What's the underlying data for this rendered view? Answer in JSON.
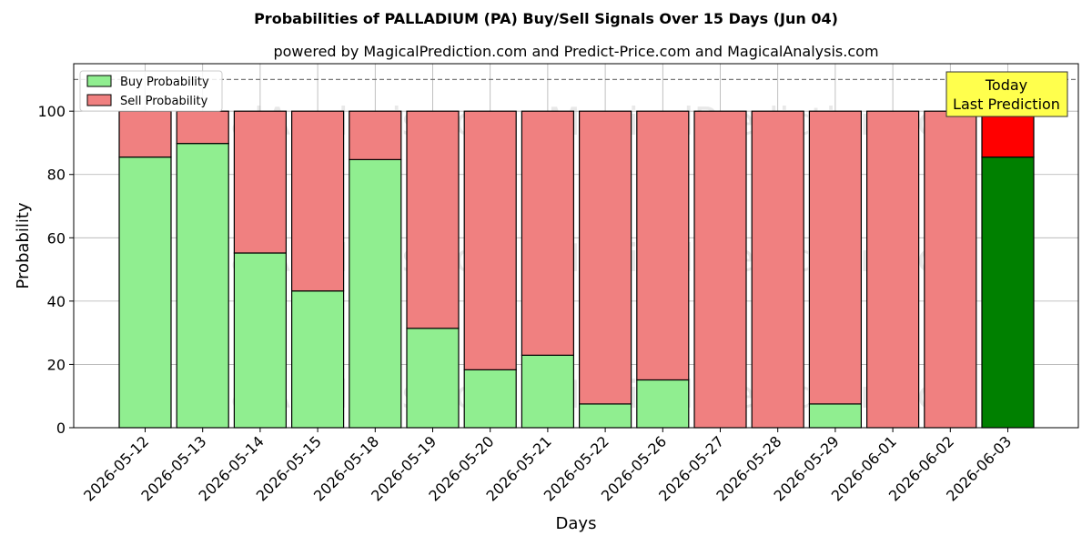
{
  "chart_data": {
    "type": "bar",
    "title": "Probabilities of PALLADIUM (PA) Buy/Sell Signals Over 15 Days (Jun 04)",
    "subtitle": "powered by MagicalPrediction.com and Predict-Price.com and MagicalAnalysis.com",
    "xlabel": "Days",
    "ylabel": "Probability",
    "ylim": [
      0,
      115
    ],
    "yticks": [
      0,
      20,
      40,
      60,
      80,
      100
    ],
    "reference_line": 110,
    "grid": true,
    "legend_position": "top-left",
    "categories": [
      "2026-05-12",
      "2026-05-13",
      "2026-05-14",
      "2026-05-15",
      "2026-05-18",
      "2026-05-19",
      "2026-05-20",
      "2026-05-21",
      "2026-05-22",
      "2026-05-26",
      "2026-05-27",
      "2026-05-28",
      "2026-05-29",
      "2026-06-01",
      "2026-06-02",
      "2026-06-03"
    ],
    "series": [
      {
        "name": "Buy Probability",
        "values": [
          85.5,
          89.8,
          55.2,
          43.2,
          84.7,
          31.4,
          18.3,
          22.9,
          7.5,
          15.1,
          0,
          0,
          7.5,
          0,
          0,
          85.5
        ]
      },
      {
        "name": "Sell Probability",
        "values": [
          14.5,
          10.2,
          44.8,
          56.8,
          15.3,
          68.6,
          81.7,
          77.1,
          92.5,
          84.9,
          100,
          100,
          92.5,
          100,
          100,
          14.5
        ]
      }
    ],
    "colors": {
      "buy": "#90ee90",
      "sell": "#f08080",
      "today_buy": "#008000",
      "today_sell": "#ff0000",
      "annotation_bg": "#ffff4d"
    },
    "annotation": {
      "line1": "Today",
      "line2": "Last Prediction"
    },
    "watermarks": [
      "MagicalAnalysis.com",
      "MagicalPrediction.com"
    ]
  }
}
